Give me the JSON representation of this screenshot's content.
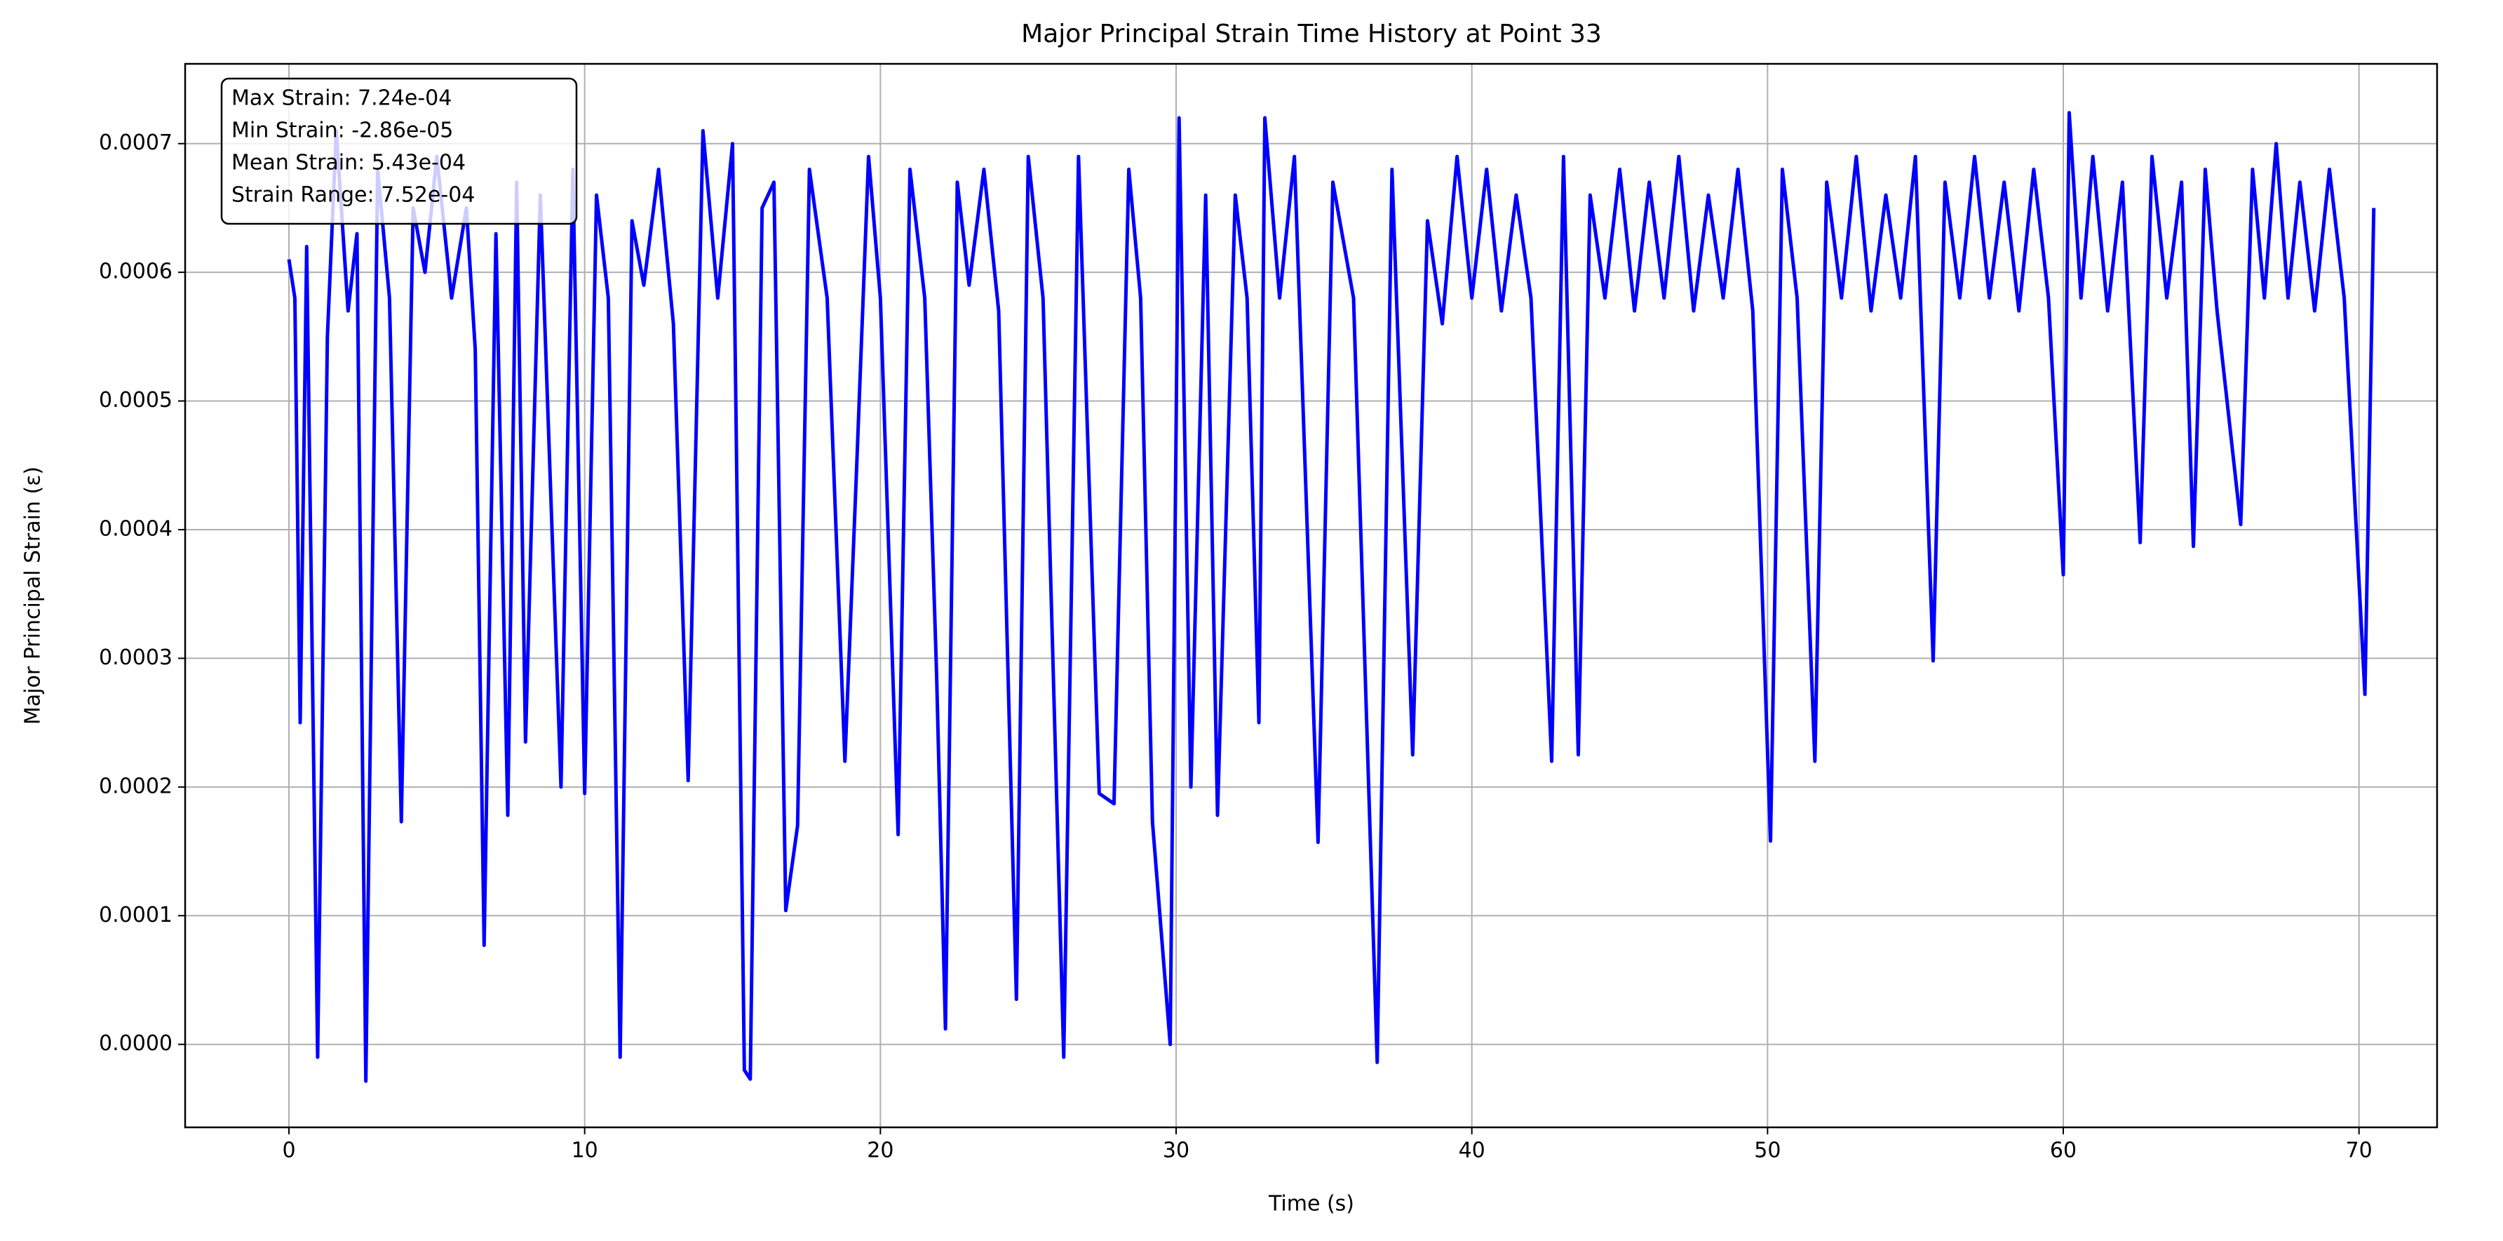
{
  "chart_data": {
    "type": "line",
    "title": "Major Principal Strain Time History at Point 33",
    "x_label": "Time (s)",
    "y_label": "Major Principal Strain (ε)",
    "annotations": [
      "Max Strain: 7.24e-04",
      "Min Strain: -2.86e-05",
      "Mean Strain: 5.43e-04",
      "Strain Range: 7.52e-04"
    ],
    "color": "#0000ff",
    "grid": true,
    "xlim": [
      -3.51,
      72.64
    ],
    "ylim": [
      -6.45e-05,
      0.000762
    ],
    "xticks": [
      0,
      10,
      20,
      30,
      40,
      50,
      60,
      70
    ],
    "yticks": [
      {
        "value": 0,
        "label": "0.0000"
      },
      0.0001,
      0.0002,
      0.0003,
      0.0004,
      0.0005,
      0.0006,
      0.0007
    ],
    "x": [
      0,
      0.2,
      0.38,
      0.6,
      0.97,
      1.3,
      1.6,
      2.0,
      2.3,
      2.6,
      3.0,
      3.4,
      3.8,
      4.2,
      4.6,
      5.0,
      5.5,
      6.0,
      6.3,
      6.6,
      7.0,
      7.4,
      7.7,
      8.0,
      8.5,
      9.2,
      9.6,
      10.0,
      10.4,
      10.8,
      11.2,
      11.6,
      12.0,
      12.5,
      13.0,
      13.5,
      14.0,
      14.5,
      15.0,
      15.4,
      15.6,
      16.0,
      16.4,
      16.8,
      17.2,
      17.6,
      18.2,
      18.8,
      19.2,
      19.6,
      20.0,
      20.6,
      21.0,
      21.5,
      21.9,
      22.2,
      22.6,
      23.0,
      23.5,
      24.0,
      24.6,
      25.0,
      25.5,
      26.2,
      26.7,
      27.4,
      27.9,
      28.4,
      28.8,
      29.2,
      29.8,
      30.1,
      30.5,
      31.0,
      31.4,
      32.0,
      32.4,
      32.8,
      33.0,
      33.5,
      34.0,
      34.8,
      35.3,
      36.0,
      36.8,
      37.3,
      38.0,
      38.5,
      39.0,
      39.5,
      40.0,
      40.5,
      41.0,
      41.5,
      42.0,
      42.7,
      43.1,
      43.6,
      44.0,
      44.5,
      45.0,
      45.5,
      46.0,
      46.5,
      47.0,
      47.5,
      48.0,
      48.5,
      49.0,
      49.5,
      50.1,
      50.5,
      51.0,
      51.6,
      52.0,
      52.5,
      53.0,
      53.5,
      54.0,
      54.5,
      55.0,
      55.6,
      56.0,
      56.5,
      57.0,
      57.5,
      58.0,
      58.5,
      59.0,
      59.5,
      60.0,
      60.2,
      60.6,
      61.0,
      61.5,
      62.0,
      62.6,
      63.0,
      63.5,
      64.0,
      64.4,
      64.8,
      65.2,
      66.0,
      66.4,
      66.8,
      67.2,
      67.6,
      68.0,
      68.5,
      69.0,
      69.5,
      70.2,
      70.5
    ],
    "values": [
      0.00061,
      0.00058,
      0.00025,
      0.00062,
      -1e-05,
      0.00055,
      0.00071,
      0.00057,
      0.00063,
      -2.86e-05,
      0.00068,
      0.00058,
      0.000173,
      0.00065,
      0.0006,
      0.00069,
      0.00058,
      0.00065,
      0.00054,
      7.7e-05,
      0.00063,
      0.000178,
      0.00067,
      0.000235,
      0.00066,
      0.0002,
      0.00068,
      0.000195,
      0.00066,
      0.00058,
      -1e-05,
      0.00064,
      0.00059,
      0.00068,
      0.00056,
      0.000205,
      0.00071,
      0.00058,
      0.0007,
      -2e-05,
      -2.7e-05,
      0.00065,
      0.00067,
      0.000104,
      0.00017,
      0.00068,
      0.00058,
      0.00022,
      0.00045,
      0.00069,
      0.00058,
      0.000163,
      0.00068,
      0.00058,
      0.000288,
      1.2e-05,
      0.00067,
      0.00059,
      0.00068,
      0.00057,
      3.5e-05,
      0.00069,
      0.00058,
      -1e-05,
      0.00069,
      0.000195,
      0.000187,
      0.00068,
      0.00058,
      0.000173,
      0.0,
      0.00072,
      0.0002,
      0.00066,
      0.000178,
      0.00066,
      0.00058,
      0.00025,
      0.00072,
      0.00058,
      0.00069,
      0.000157,
      0.00067,
      0.00058,
      -1.4e-05,
      0.00068,
      0.000225,
      0.00064,
      0.00056,
      0.00069,
      0.00058,
      0.00068,
      0.00057,
      0.00066,
      0.00058,
      0.00022,
      0.00069,
      0.000225,
      0.00066,
      0.00058,
      0.00068,
      0.00057,
      0.00067,
      0.00058,
      0.00069,
      0.00057,
      0.00066,
      0.00058,
      0.00068,
      0.00057,
      0.000158,
      0.00068,
      0.00058,
      0.00022,
      0.00067,
      0.00058,
      0.00069,
      0.00057,
      0.00066,
      0.00058,
      0.00069,
      0.000298,
      0.00067,
      0.00058,
      0.00069,
      0.00058,
      0.00067,
      0.00057,
      0.00068,
      0.00058,
      0.000365,
      0.000724,
      0.00058,
      0.00069,
      0.00057,
      0.00067,
      0.00039,
      0.00069,
      0.00058,
      0.00067,
      0.000387,
      0.00068,
      0.00057,
      0.000404,
      0.00068,
      0.00058,
      0.0007,
      0.00058,
      0.00067,
      0.00057,
      0.00068,
      0.00058,
      0.000272,
      0.00065
    ]
  }
}
